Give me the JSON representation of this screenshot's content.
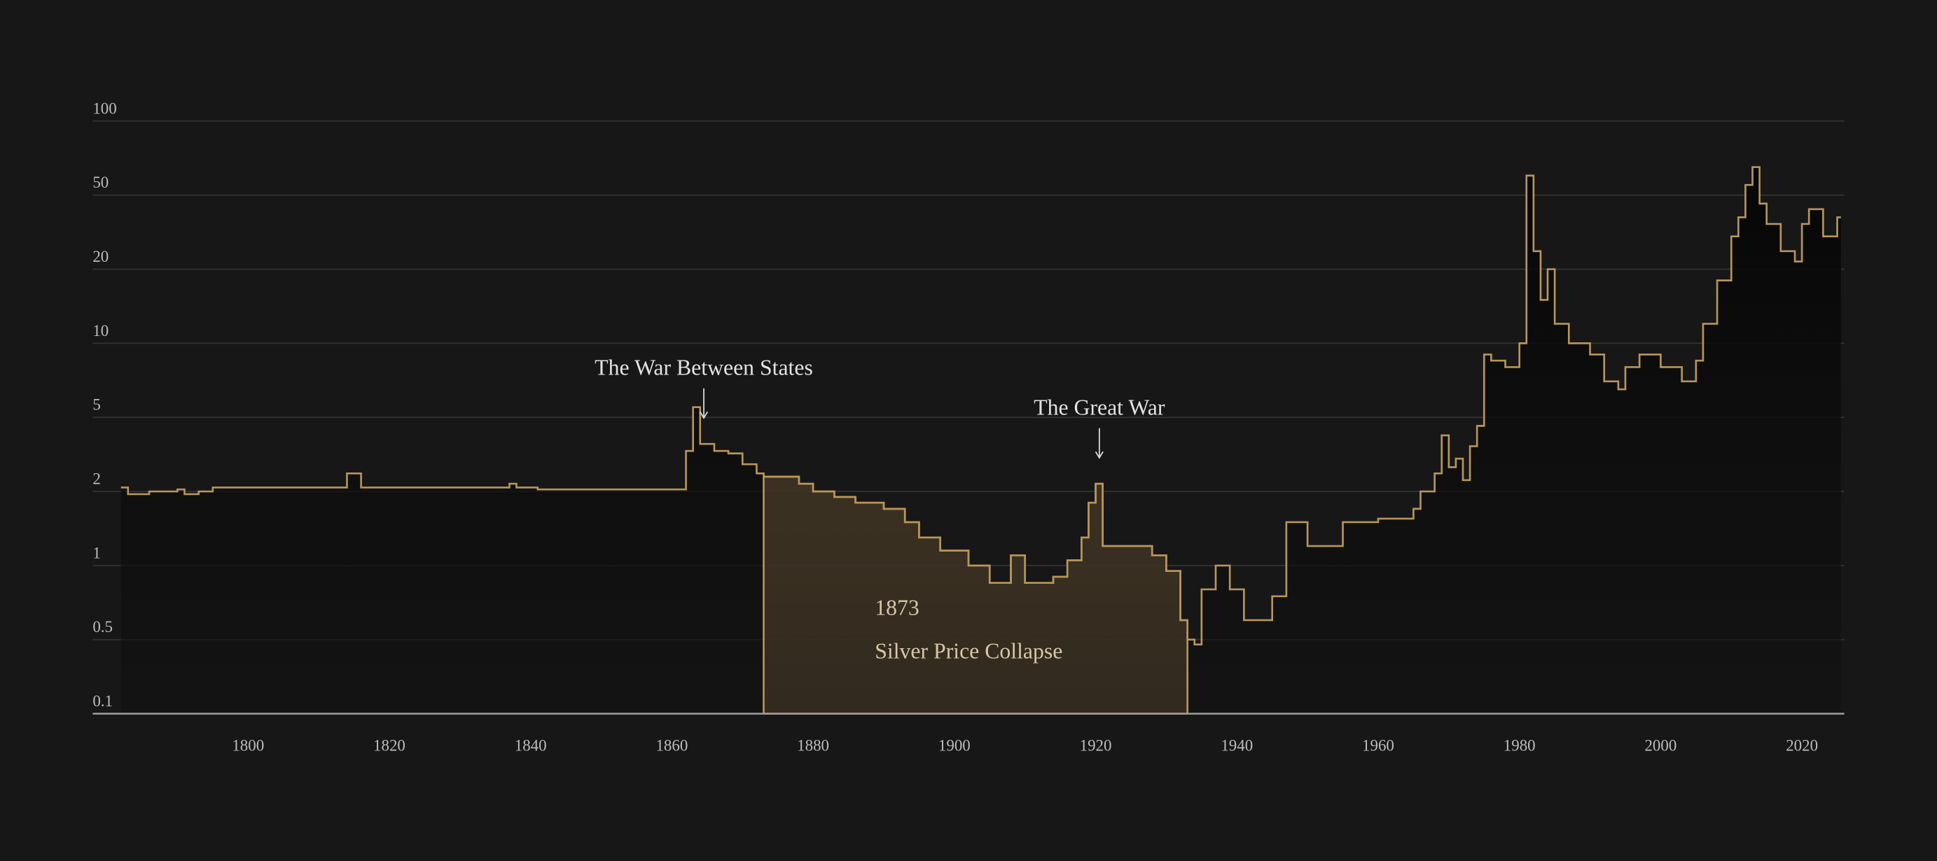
{
  "chart_data": {
    "type": "step",
    "color": "#b8955a",
    "log": true,
    "grid": true,
    "xlim": [
      1778,
      2026
    ],
    "xticks": [
      1800,
      1820,
      1840,
      1860,
      1880,
      1900,
      1920,
      1940,
      1960,
      1980,
      2000,
      2020
    ],
    "ylim": [
      0.1,
      100
    ],
    "yticks": [
      0.1,
      0.5,
      1,
      2,
      5,
      10,
      20,
      50,
      100
    ],
    "x": [
      1782,
      1783,
      1786,
      1790,
      1791,
      1793,
      1795,
      1814,
      1816,
      1818,
      1837,
      1838,
      1841,
      1862,
      1863,
      1864,
      1866,
      1868,
      1870,
      1872,
      1873,
      1878,
      1880,
      1883,
      1886,
      1890,
      1893,
      1895,
      1898,
      1902,
      1905,
      1908,
      1910,
      1914,
      1916,
      1918,
      1919,
      1920,
      1921,
      1925,
      1928,
      1930,
      1932,
      1933,
      1934,
      1935,
      1937,
      1939,
      1941,
      1945,
      1947,
      1950,
      1955,
      1960,
      1965,
      1966,
      1968,
      1969,
      1970,
      1971,
      1972,
      1973,
      1974,
      1975,
      1976,
      1978,
      1980,
      1981,
      1982,
      1983,
      1984,
      1985,
      1987,
      1990,
      1992,
      1994,
      1995,
      1997,
      2000,
      2003,
      2005,
      2006,
      2008,
      2010,
      2011,
      2012,
      2013,
      2014,
      2015,
      2017,
      2019,
      2020,
      2021,
      2023,
      2025
    ],
    "values": [
      2.1,
      1.95,
      2.0,
      2.05,
      1.95,
      2.0,
      2.1,
      2.5,
      2.1,
      2.1,
      2.2,
      2.1,
      2.05,
      3.3,
      5.5,
      3.6,
      3.3,
      3.2,
      2.8,
      2.5,
      2.4,
      2.2,
      2.0,
      1.9,
      1.8,
      1.7,
      1.5,
      1.3,
      1.15,
      1.0,
      0.85,
      1.1,
      0.85,
      0.9,
      1.05,
      1.3,
      1.8,
      2.2,
      1.2,
      1.2,
      1.1,
      0.95,
      0.6,
      0.5,
      0.45,
      0.8,
      1.0,
      0.8,
      0.6,
      0.75,
      1.5,
      1.2,
      1.5,
      1.55,
      1.7,
      2.0,
      2.5,
      4,
      2.7,
      3,
      2.3,
      3.5,
      4.5,
      9,
      8.5,
      8,
      10,
      60,
      25,
      15,
      20,
      12,
      10,
      9,
      7,
      6.5,
      8,
      9,
      8,
      7,
      8.5,
      12,
      18,
      30,
      38,
      55,
      65,
      45,
      35,
      25,
      22,
      35,
      42,
      30,
      38
    ],
    "annotations": [
      {
        "text": "The War Between States",
        "x": 1864
      },
      {
        "text": "The Great War",
        "x": 1920
      }
    ],
    "highlight": {
      "start": 1873,
      "end": 1933,
      "label": "1873",
      "text": "Silver Price Collapse"
    }
  }
}
